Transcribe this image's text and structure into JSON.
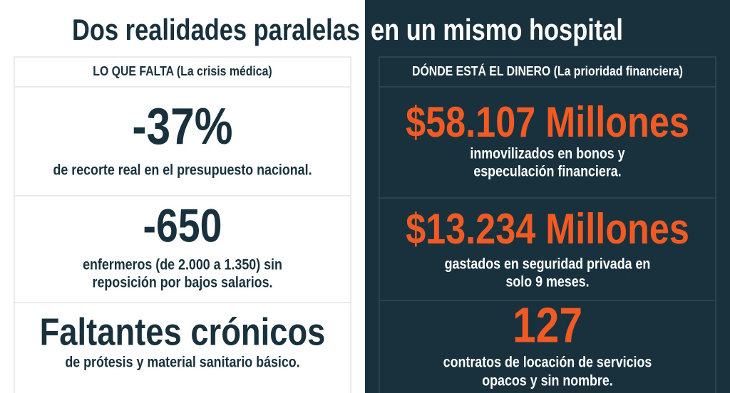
{
  "title": {
    "left": "Dos realidades paralelas",
    "right": "en un mismo hospital"
  },
  "left": {
    "heading": "LO QUE FALTA (La crisis médica)",
    "items": [
      {
        "figure": "-37%",
        "lines": [
          "de recorte real en el presupuesto nacional."
        ]
      },
      {
        "figure": "-650",
        "lines": [
          "enfermeros (de 2.000 a 1.350) sin",
          "reposición por bajos salarios."
        ]
      },
      {
        "figure": "Faltantes crónicos",
        "lines": [
          "de prótesis y material sanitario básico."
        ]
      }
    ]
  },
  "right": {
    "heading": "DÓNDE ESTÁ EL DINERO (La prioridad financiera)",
    "items": [
      {
        "figure": "$58.107 Millones",
        "lines": [
          "inmovilizados en bonos y",
          "especulación financiera."
        ]
      },
      {
        "figure": "$13.234 Millones",
        "lines": [
          "gastados en seguridad privada en",
          "solo 9 meses."
        ]
      },
      {
        "figure": "127",
        "lines": [
          "contratos de locación de servicios",
          "opacos y sin nombre."
        ]
      }
    ]
  }
}
